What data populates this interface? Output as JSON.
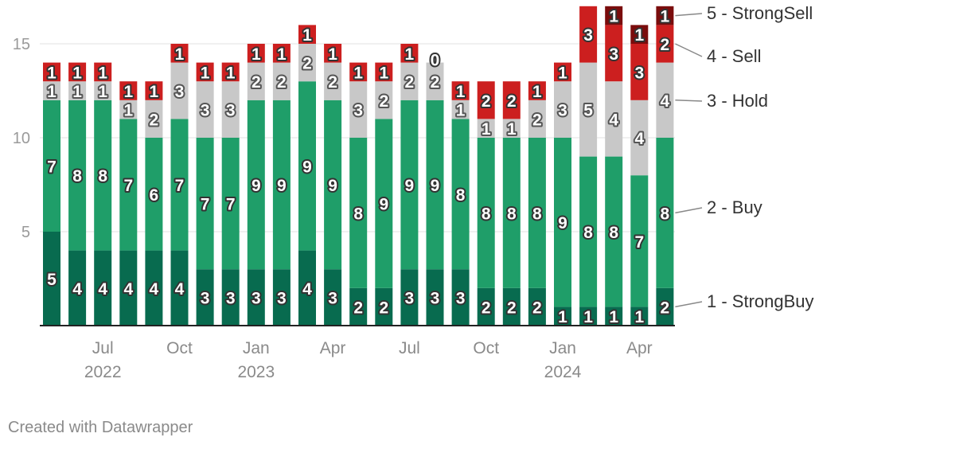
{
  "chart_data": {
    "type": "bar",
    "stacked": true,
    "categories": [
      "2022-05",
      "2022-06",
      "2022-07",
      "2022-08",
      "2022-09",
      "2022-10",
      "2022-11",
      "2022-12",
      "2023-01",
      "2023-02",
      "2023-03",
      "2023-04",
      "2023-05",
      "2023-06",
      "2023-07",
      "2023-08",
      "2023-09",
      "2023-10",
      "2023-11",
      "2023-12",
      "2024-01",
      "2024-02",
      "2024-03",
      "2024-04",
      "2024-05"
    ],
    "series": [
      {
        "name": "1 - StrongBuy",
        "color": "#086b4f",
        "values": [
          5,
          4,
          4,
          4,
          4,
          4,
          3,
          3,
          3,
          3,
          4,
          3,
          2,
          2,
          3,
          3,
          3,
          2,
          2,
          2,
          1,
          1,
          1,
          1,
          2
        ]
      },
      {
        "name": "2 - Buy",
        "color": "#1f9e69",
        "values": [
          7,
          8,
          8,
          7,
          6,
          7,
          7,
          7,
          9,
          9,
          9,
          9,
          8,
          9,
          9,
          9,
          8,
          8,
          8,
          8,
          9,
          8,
          8,
          7,
          8
        ]
      },
      {
        "name": "3 - Hold",
        "color": "#c8c8c8",
        "values": [
          1,
          1,
          1,
          1,
          2,
          3,
          3,
          3,
          2,
          2,
          2,
          2,
          3,
          2,
          2,
          2,
          1,
          1,
          1,
          2,
          3,
          5,
          4,
          4,
          4
        ]
      },
      {
        "name": "4 - Sell",
        "color": "#cc1f1f",
        "values": [
          1,
          1,
          1,
          1,
          1,
          1,
          1,
          1,
          1,
          1,
          1,
          1,
          1,
          1,
          1,
          0,
          1,
          2,
          2,
          1,
          1,
          3,
          3,
          3,
          2
        ]
      },
      {
        "name": "5 - StrongSell",
        "color": "#7a0c0c",
        "values": [
          0,
          0,
          0,
          0,
          0,
          0,
          0,
          0,
          0,
          0,
          0,
          0,
          0,
          0,
          0,
          0,
          0,
          0,
          0,
          0,
          0,
          0,
          1,
          1,
          1
        ]
      }
    ],
    "ylim": [
      0,
      17
    ],
    "yticks": [
      "5",
      "10",
      "15"
    ],
    "xticks": [
      {
        "month": "Jul",
        "year": "2022",
        "index": 2
      },
      {
        "month": "Oct",
        "year": "",
        "index": 5
      },
      {
        "month": "Jan",
        "year": "2023",
        "index": 8
      },
      {
        "month": "Apr",
        "year": "",
        "index": 11
      },
      {
        "month": "Jul",
        "year": "",
        "index": 14
      },
      {
        "month": "Oct",
        "year": "",
        "index": 17
      },
      {
        "month": "Jan",
        "year": "2024",
        "index": 20
      },
      {
        "month": "Apr",
        "year": "",
        "index": 23
      }
    ],
    "grid": true,
    "legend": "right (direct labels)"
  },
  "credit": "Created with Datawrapper"
}
